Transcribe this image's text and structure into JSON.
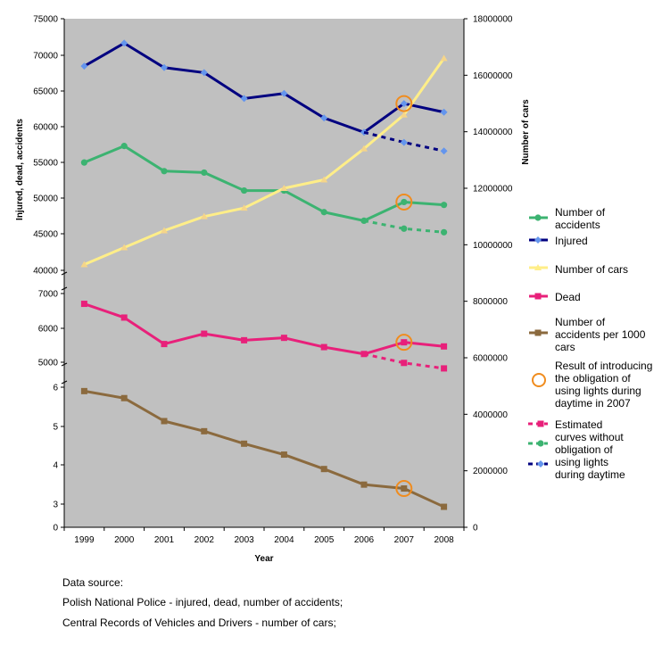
{
  "chart_data": {
    "type": "line",
    "xlabel": "Year",
    "ylabel_left": "Injured, dead, accidents",
    "ylabel_right": "Number of cars",
    "categories": [
      "1999",
      "2000",
      "2001",
      "2002",
      "2003",
      "2004",
      "2005",
      "2006",
      "2007",
      "2008"
    ],
    "left_axis_segments": [
      {
        "range": [
          40000,
          75000
        ],
        "ticks": [
          "75000",
          "70000",
          "65000",
          "60000",
          "55000",
          "50000",
          "45000",
          "40000"
        ]
      },
      {
        "range": [
          5000,
          7000
        ],
        "ticks": [
          "7000",
          "6000",
          "5000"
        ]
      },
      {
        "range": [
          3,
          6
        ],
        "ticks": [
          "6",
          "5",
          "4",
          "3"
        ]
      },
      {
        "range": [
          0,
          0
        ],
        "ticks": [
          "0"
        ]
      }
    ],
    "right_axis": {
      "range": [
        0,
        18000000
      ],
      "ticks": [
        "18000000",
        "16000000",
        "14000000",
        "12000000",
        "10000000",
        "8000000",
        "6000000",
        "4000000",
        "2000000",
        "0"
      ]
    },
    "series": [
      {
        "name": "Number of accidents",
        "color": "#3cb371",
        "marker": "circle",
        "segment": 0,
        "values": [
          55000,
          57300,
          53800,
          53600,
          51100,
          51100,
          48100,
          46900,
          49500,
          49100
        ]
      },
      {
        "name": "Injured",
        "color": "#000080",
        "marker": "diamond",
        "segment": 0,
        "values": [
          68400,
          71600,
          68200,
          67500,
          63900,
          64600,
          61200,
          59200,
          63200,
          62000
        ]
      },
      {
        "name": "Number of cars",
        "color": "#ffee88",
        "marker": "triangle",
        "segment": "right",
        "values": [
          9300000,
          9900000,
          10500000,
          11000000,
          11300000,
          12000000,
          12300000,
          13400000,
          14600000,
          16600000
        ]
      },
      {
        "name": "Dead",
        "color": "#e8207a",
        "marker": "square",
        "segment": 1,
        "values": [
          6700,
          6300,
          5530,
          5830,
          5640,
          5710,
          5440,
          5240,
          5580,
          5460
        ]
      },
      {
        "name": "Number of accidents per 1000 cars",
        "color": "#8b6a3e",
        "marker": "square",
        "segment": 2,
        "values": [
          5.9,
          5.72,
          5.13,
          4.87,
          4.55,
          4.27,
          3.9,
          3.5,
          3.4,
          2.93
        ]
      }
    ],
    "estimated_series": [
      {
        "color": "#e8207a",
        "marker": "square",
        "segment": 1,
        "points": [
          [
            7,
            5240
          ],
          [
            8,
            4980
          ],
          [
            9,
            4820
          ]
        ]
      },
      {
        "color": "#3cb371",
        "marker": "circle",
        "segment": 0,
        "points": [
          [
            7,
            46900
          ],
          [
            8,
            45800
          ],
          [
            9,
            45300
          ]
        ]
      },
      {
        "color": "#000080",
        "marker": "diamond",
        "markerColor": "#6495ed",
        "segment": 0,
        "points": [
          [
            7,
            59200
          ],
          [
            8,
            57800
          ],
          [
            9,
            56600
          ]
        ]
      }
    ],
    "highlight_circles": [
      {
        "series": "Injured",
        "x": 8
      },
      {
        "series": "Number of accidents",
        "x": 8
      },
      {
        "series": "Dead",
        "x": 8
      },
      {
        "series": "Number of accidents per 1000 cars",
        "x": 8
      }
    ],
    "legend": [
      {
        "label": "Number of accidents",
        "color": "#3cb371",
        "marker": "circle",
        "style": "solid"
      },
      {
        "label": "Injured",
        "color": "#000080",
        "marker": "diamond",
        "markerColor": "#6495ed",
        "style": "solid"
      },
      {
        "label": "Number of cars",
        "color": "#ffee88",
        "marker": "triangle",
        "style": "solid"
      },
      {
        "label": "Dead",
        "color": "#e8207a",
        "marker": "square",
        "style": "solid"
      },
      {
        "label": "Number of accidents per 1000 cars",
        "color": "#8b6a3e",
        "marker": "square",
        "style": "solid"
      },
      {
        "label": "Result of introducing the obligation of using lights during daytime in 2007",
        "color": "#f08c1e",
        "marker": "ring",
        "style": "none"
      },
      {
        "label": "Estimated curves without obligation of using lights during daytime",
        "style": "estimated"
      }
    ],
    "plot_background": "#c0c0c0"
  },
  "source": {
    "heading": "Data source:",
    "line1": "Polish National Police - injured, dead, number of accidents;",
    "line2": "Central Records of Vehicles and Drivers - number of cars;"
  }
}
